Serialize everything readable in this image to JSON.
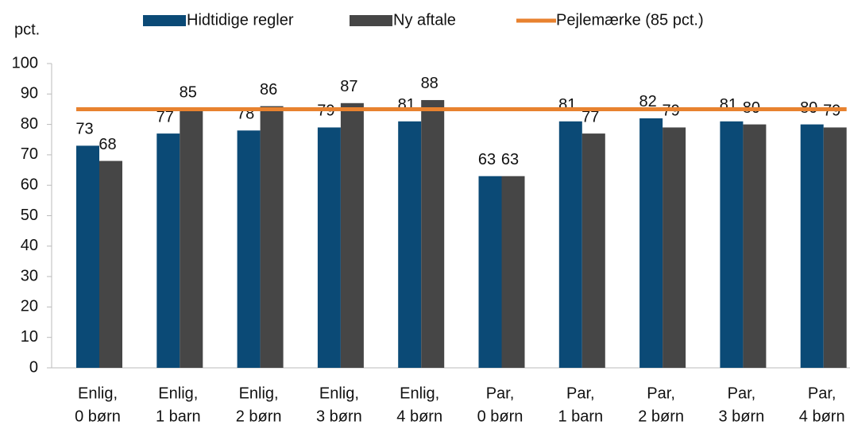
{
  "chart_data": {
    "type": "bar",
    "y_axis_label": "pct.",
    "categories": [
      [
        "Enlig,",
        "0 børn"
      ],
      [
        "Enlig,",
        "1 barn"
      ],
      [
        "Enlig,",
        "2 børn"
      ],
      [
        "Enlig,",
        "3 børn"
      ],
      [
        "Enlig,",
        "4 børn"
      ],
      [
        "Par,",
        "0 børn"
      ],
      [
        "Par,",
        "1 barn"
      ],
      [
        "Par,",
        "2 børn"
      ],
      [
        "Par,",
        "3 børn"
      ],
      [
        "Par,",
        "4 børn"
      ]
    ],
    "series": [
      {
        "name": "Hidtidige regler",
        "type": "bar",
        "color": "#0b4a76",
        "values": [
          73,
          77,
          78,
          79,
          81,
          63,
          81,
          82,
          81,
          80
        ]
      },
      {
        "name": "Ny aftale",
        "type": "bar",
        "color": "#464646",
        "values": [
          68,
          85,
          86,
          87,
          88,
          63,
          77,
          79,
          80,
          79
        ]
      },
      {
        "name": "Pejlemærke (85 pct.)",
        "type": "line",
        "color": "#e8822f",
        "values": [
          85,
          85,
          85,
          85,
          85,
          85,
          85,
          85,
          85,
          85
        ]
      }
    ],
    "ylim": [
      0,
      100
    ],
    "yticks": [
      0,
      10,
      20,
      30,
      40,
      50,
      60,
      70,
      80,
      90,
      100
    ],
    "grid": false,
    "legend": "top"
  }
}
